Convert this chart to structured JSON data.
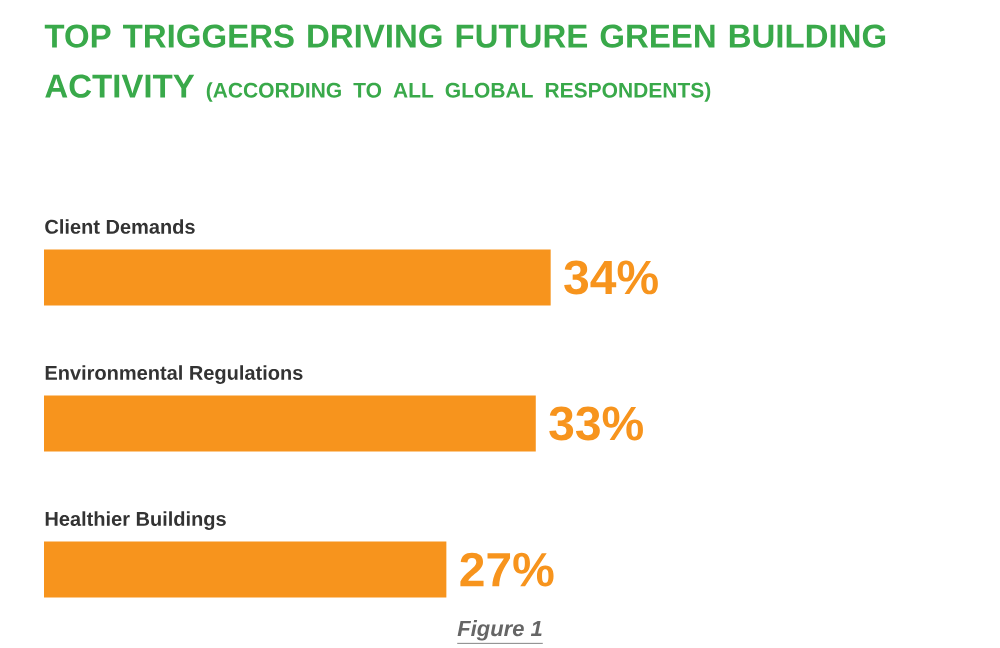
{
  "chart_data": {
    "type": "bar",
    "orientation": "horizontal",
    "title": "TOP TRIGGERS DRIVING FUTURE GREEN BUILDING ACTIVITY",
    "subtitle": "(ACCORDING TO ALL GLOBAL RESPONDENTS)",
    "categories": [
      "Client Demands",
      "Environmental Regulations",
      "Healthier Buildings"
    ],
    "values": [
      34,
      33,
      27
    ],
    "color": "#f7941d",
    "value_labels": [
      "34%",
      "33%",
      "27%"
    ],
    "annotations": [
      "Figure 1"
    ]
  }
}
